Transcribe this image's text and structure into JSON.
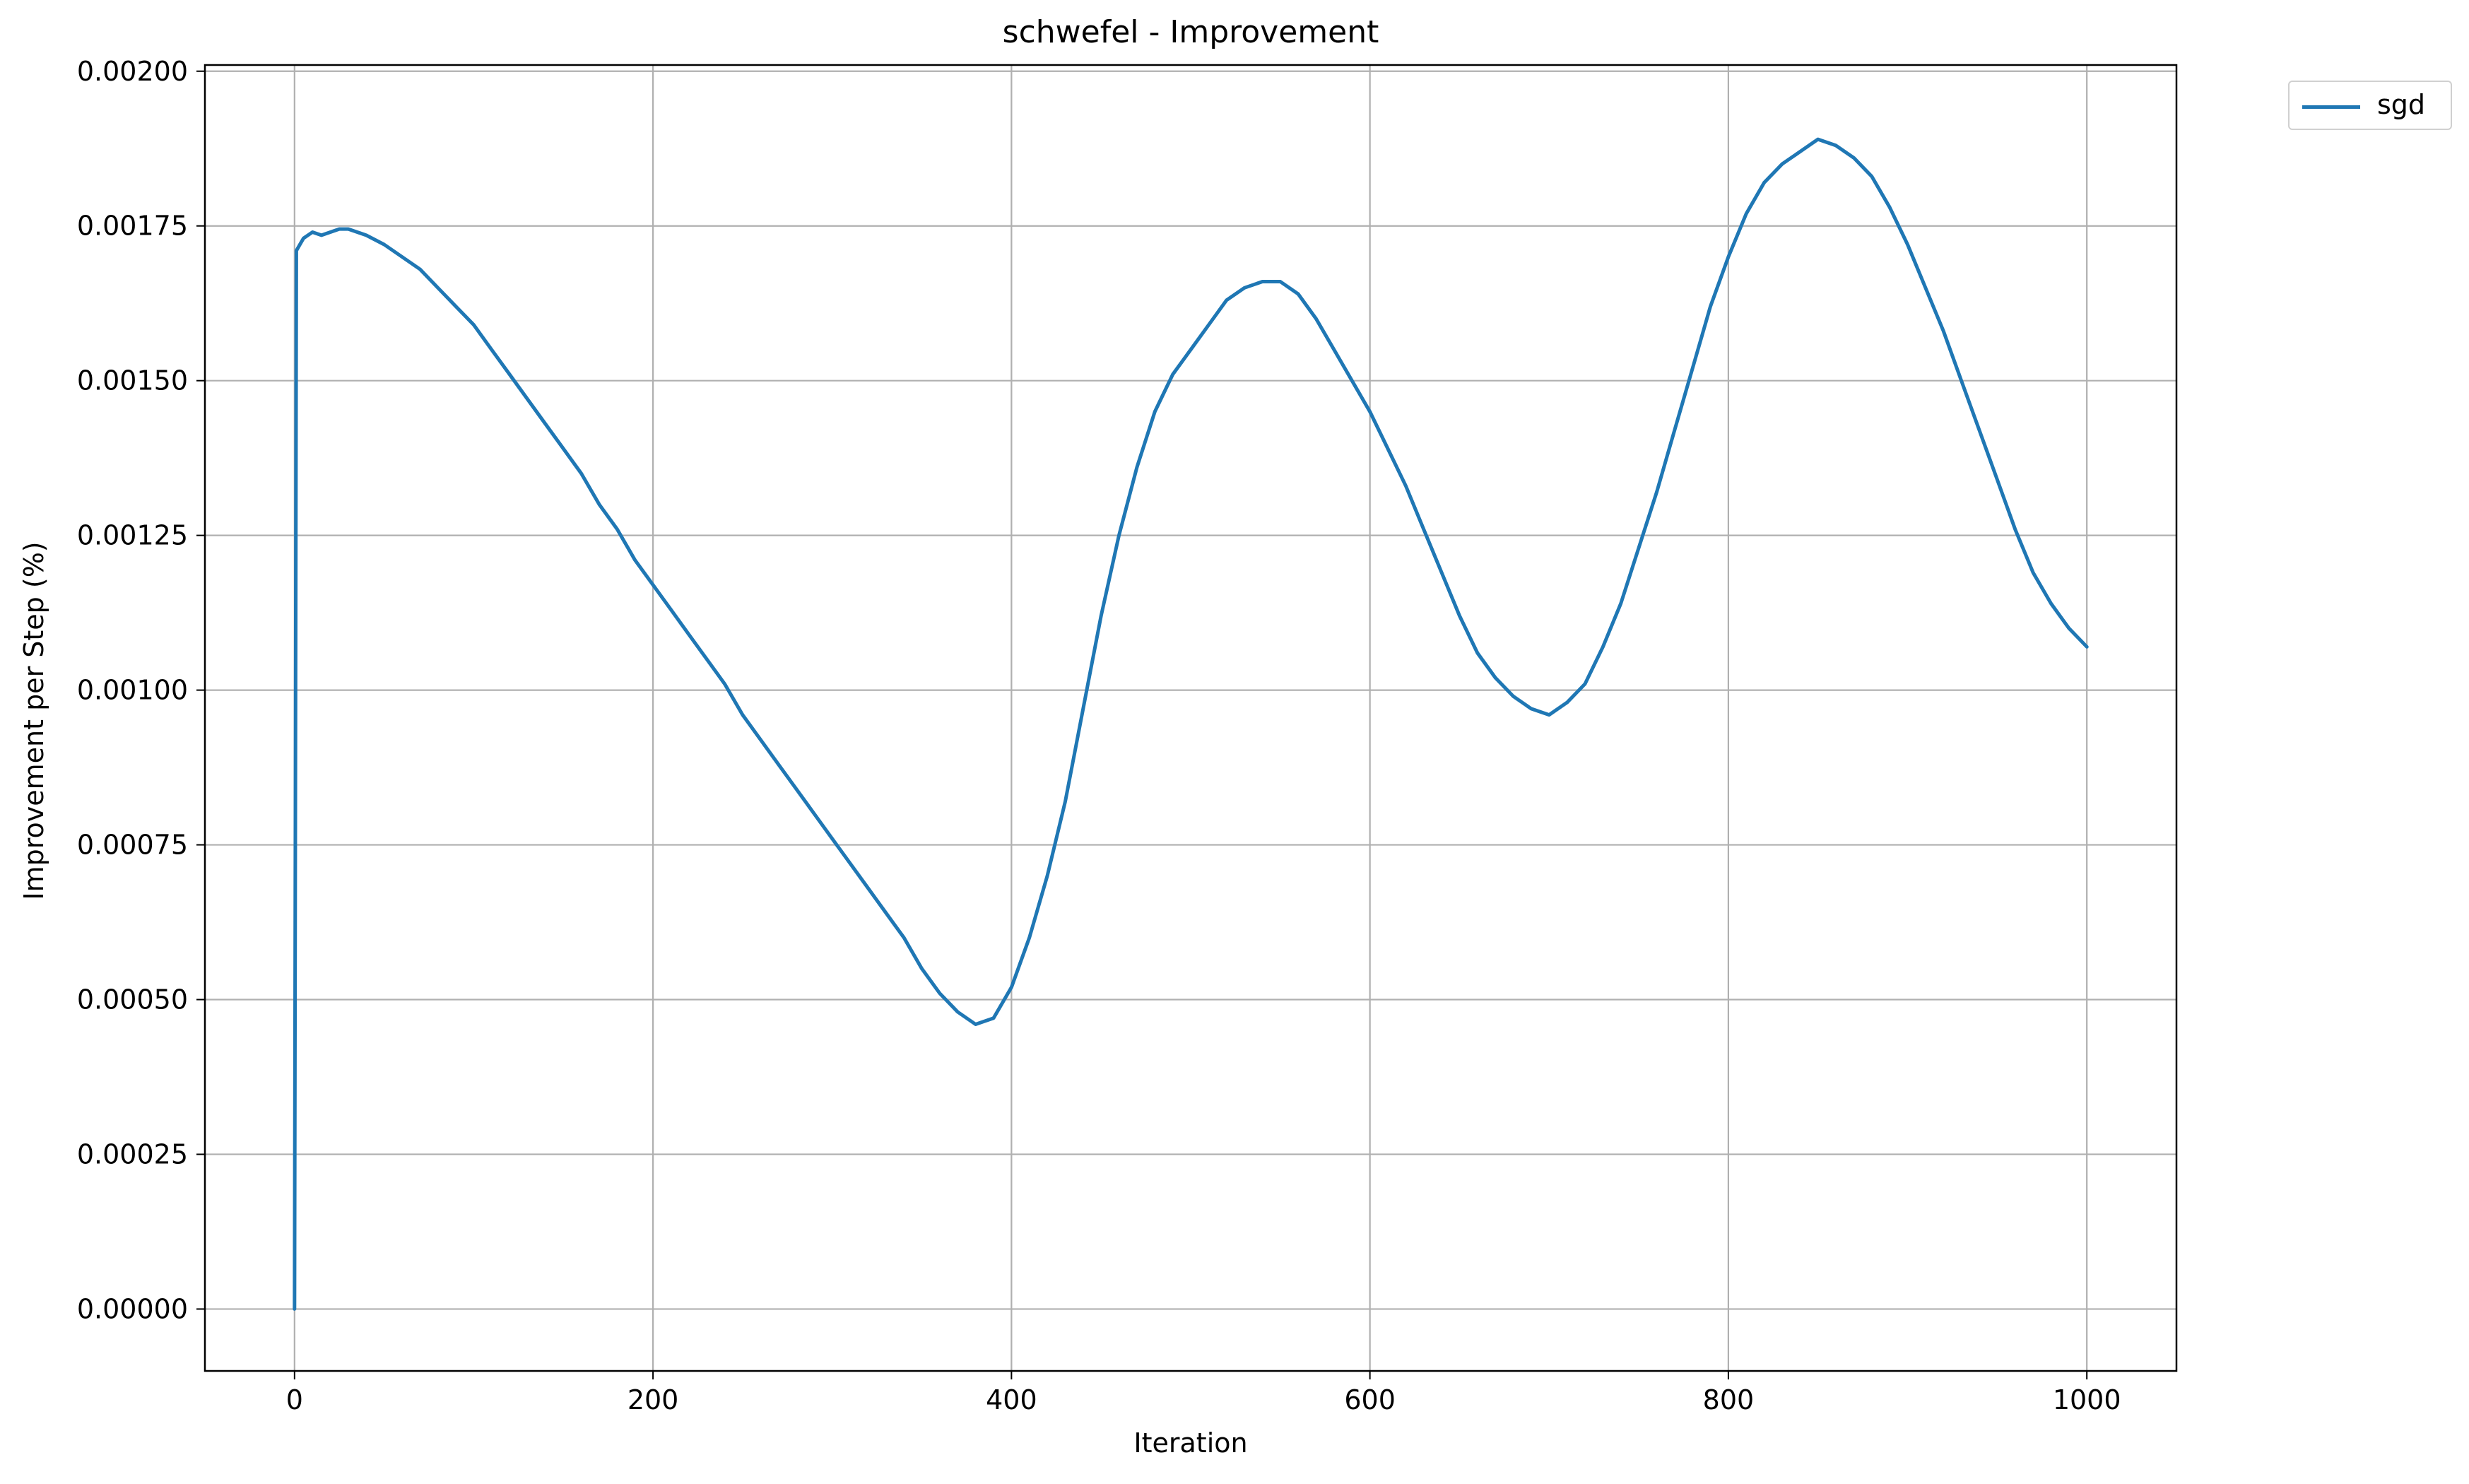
{
  "chart_data": {
    "type": "line",
    "title": "schwefel - Improvement",
    "xlabel": "Iteration",
    "ylabel": "Improvement per Step (%)",
    "xlim": [
      -50,
      1050
    ],
    "ylim": [
      -0.0001,
      0.00201
    ],
    "x_ticks": [
      0,
      200,
      400,
      600,
      800,
      1000
    ],
    "x_tick_labels": [
      "0",
      "200",
      "400",
      "600",
      "800",
      "1000"
    ],
    "y_ticks": [
      0,
      0.00025,
      0.0005,
      0.00075,
      0.001,
      0.00125,
      0.0015,
      0.00175,
      0.002
    ],
    "y_tick_labels": [
      "0.00000",
      "0.00025",
      "0.00050",
      "0.00075",
      "0.00100",
      "0.00125",
      "0.00150",
      "0.00175",
      "0.00200"
    ],
    "grid": true,
    "legend_position": "outside top-right",
    "colors": {
      "sgd": "#1f77b4"
    },
    "series": [
      {
        "name": "sgd",
        "x": [
          0,
          1,
          3,
          5,
          10,
          15,
          20,
          25,
          30,
          35,
          40,
          50,
          60,
          70,
          80,
          90,
          100,
          110,
          120,
          130,
          140,
          150,
          160,
          170,
          180,
          190,
          200,
          210,
          220,
          230,
          240,
          250,
          260,
          270,
          280,
          290,
          300,
          310,
          320,
          330,
          340,
          350,
          360,
          370,
          380,
          390,
          400,
          410,
          420,
          430,
          440,
          450,
          460,
          470,
          480,
          490,
          500,
          510,
          520,
          530,
          540,
          550,
          560,
          570,
          580,
          590,
          600,
          610,
          620,
          630,
          640,
          650,
          660,
          670,
          680,
          690,
          700,
          710,
          720,
          730,
          740,
          750,
          760,
          770,
          780,
          790,
          800,
          810,
          820,
          830,
          840,
          850,
          860,
          870,
          880,
          890,
          900,
          910,
          920,
          930,
          940,
          950,
          960,
          970,
          980,
          990,
          1000
        ],
        "y": [
          0.0,
          0.00171,
          0.00172,
          0.00173,
          0.00174,
          0.001735,
          0.00174,
          0.001745,
          0.001745,
          0.00174,
          0.001735,
          0.00172,
          0.0017,
          0.00168,
          0.00165,
          0.00162,
          0.00159,
          0.00155,
          0.00151,
          0.00147,
          0.00143,
          0.00139,
          0.00135,
          0.0013,
          0.00126,
          0.00121,
          0.00117,
          0.00113,
          0.00109,
          0.00105,
          0.00101,
          0.00096,
          0.00092,
          0.00088,
          0.00084,
          0.0008,
          0.00076,
          0.00072,
          0.00068,
          0.00064,
          0.0006,
          0.00055,
          0.00051,
          0.00048,
          0.00046,
          0.00047,
          0.00052,
          0.0006,
          0.0007,
          0.00082,
          0.00097,
          0.00112,
          0.00125,
          0.00136,
          0.00145,
          0.00151,
          0.00155,
          0.00159,
          0.00163,
          0.00165,
          0.00166,
          0.00166,
          0.00164,
          0.0016,
          0.00155,
          0.0015,
          0.00145,
          0.00139,
          0.00133,
          0.00126,
          0.00119,
          0.00112,
          0.00106,
          0.00102,
          0.00099,
          0.00097,
          0.00096,
          0.00098,
          0.00101,
          0.00107,
          0.00114,
          0.00123,
          0.00132,
          0.00142,
          0.00152,
          0.00162,
          0.0017,
          0.00177,
          0.00182,
          0.00185,
          0.00187,
          0.00189,
          0.00188,
          0.00186,
          0.00183,
          0.00178,
          0.00172,
          0.00165,
          0.00158,
          0.0015,
          0.00142,
          0.00134,
          0.00126,
          0.00119,
          0.00114,
          0.0011,
          0.00107
        ]
      }
    ]
  }
}
